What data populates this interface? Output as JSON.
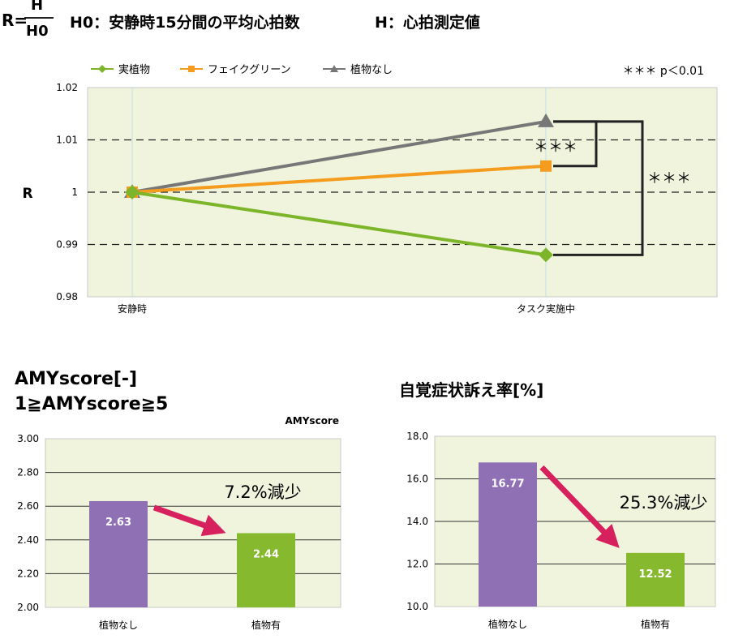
{
  "formula": {
    "lhs": "R=",
    "numerator": "H",
    "denominator": "H0",
    "def_h0": "H0：安静時15分間の平均心拍数",
    "def_h": "H：心拍測定値"
  },
  "chart_data": [
    {
      "type": "line",
      "ylabel": "R",
      "ylim": [
        0.98,
        1.02
      ],
      "yticks": [
        "0.98",
        "0.99",
        "1",
        "1.01",
        "1.02"
      ],
      "ytick_values": [
        0.98,
        0.99,
        1.0,
        1.01,
        1.02
      ],
      "categories": [
        "安静時",
        "タスク実施中"
      ],
      "legend_position": "top-left",
      "series": [
        {
          "name": "実植物",
          "values": [
            1.0,
            0.988
          ],
          "color": "#7db52a",
          "marker": "diamond"
        },
        {
          "name": "フェイクグリーン",
          "values": [
            1.0,
            1.005
          ],
          "color": "#f59b1e",
          "marker": "square"
        },
        {
          "name": "植物なし",
          "values": [
            1.0,
            1.0135
          ],
          "color": "#777777",
          "marker": "triangle"
        }
      ],
      "significance_note": "＊＊＊ p＜0.01",
      "sig_mark_inner": "＊＊＊",
      "sig_mark_outer": "＊＊＊"
    },
    {
      "type": "bar",
      "title_line1": "AMYscore[-]",
      "title_line2": "1≧AMYscore≧5",
      "subtitle": "AMYscore",
      "categories": [
        "植物なし",
        "植物有"
      ],
      "values": [
        2.63,
        2.44
      ],
      "value_labels": [
        "2.63",
        "2.44"
      ],
      "colors": [
        "#9070b4",
        "#86b92e"
      ],
      "ylim": [
        2.0,
        3.0
      ],
      "yticks": [
        "2.00",
        "2.20",
        "2.40",
        "2.60",
        "2.80",
        "3.00"
      ],
      "ytick_values": [
        2.0,
        2.2,
        2.4,
        2.6,
        2.8,
        3.0
      ],
      "annotation": "7.2%減少",
      "arrow_color": "#d6215e"
    },
    {
      "type": "bar",
      "title": "自覚症状訴え率[%]",
      "categories": [
        "植物なし",
        "植物有"
      ],
      "values": [
        16.77,
        12.52
      ],
      "value_labels": [
        "16.77",
        "12.52"
      ],
      "colors": [
        "#9070b4",
        "#86b92e"
      ],
      "ylim": [
        10.0,
        18.0
      ],
      "yticks": [
        "10.0",
        "12.0",
        "14.0",
        "16.0",
        "18.0"
      ],
      "ytick_values": [
        10.0,
        12.0,
        14.0,
        16.0,
        18.0
      ],
      "annotation": "25.3%減少",
      "arrow_color": "#d6215e"
    }
  ]
}
